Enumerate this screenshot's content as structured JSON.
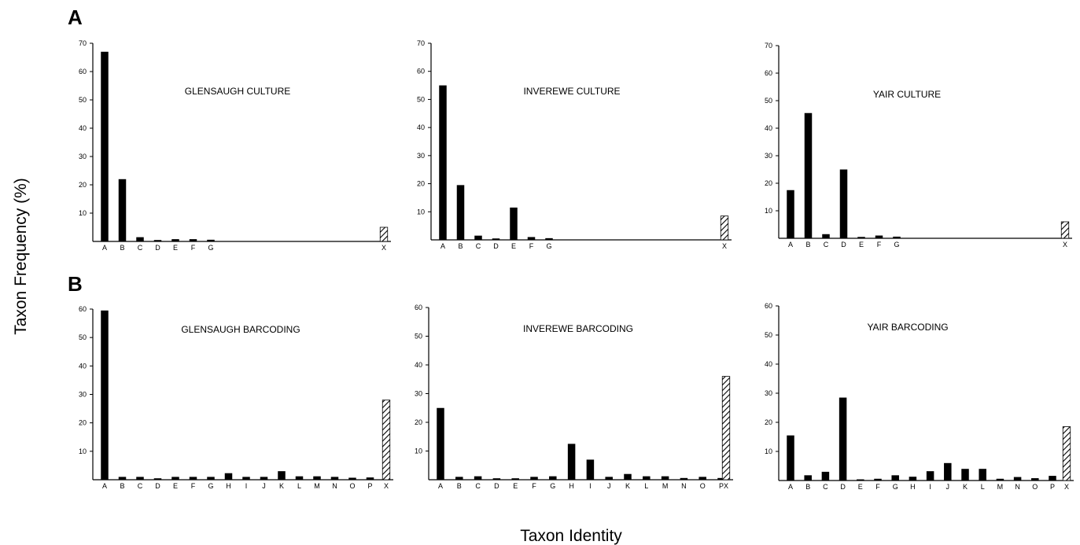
{
  "figure": {
    "panel_labels": [
      "A",
      "B"
    ],
    "y_axis_title": "Taxon Frequency (%)",
    "x_axis_title": "Taxon Identity",
    "colors": {
      "bar": "#000000",
      "axis": "#000000",
      "hatch": "#000000",
      "background": "#ffffff"
    }
  },
  "chart_data": [
    {
      "type": "bar",
      "title": "GLENSAUGH CULTURE",
      "row": "A",
      "categories": [
        "A",
        "B",
        "C",
        "D",
        "E",
        "F",
        "G",
        "X"
      ],
      "values": [
        67,
        22,
        1.5,
        0.5,
        0.8,
        0.8,
        0.6,
        5
      ],
      "hatched_categories": [
        "X"
      ],
      "ylim": [
        0,
        70
      ],
      "yticks": [
        10,
        20,
        30,
        40,
        50,
        60,
        70
      ]
    },
    {
      "type": "bar",
      "title": "INVEREWE CULTURE",
      "row": "A",
      "categories": [
        "A",
        "B",
        "C",
        "D",
        "E",
        "F",
        "G",
        "X"
      ],
      "values": [
        55,
        19.5,
        1.5,
        0.5,
        11.5,
        1,
        0.6,
        8.5
      ],
      "hatched_categories": [
        "X"
      ],
      "ylim": [
        0,
        70
      ],
      "yticks": [
        10,
        20,
        30,
        40,
        50,
        60,
        70
      ]
    },
    {
      "type": "bar",
      "title": "YAIR CULTURE",
      "row": "A",
      "categories": [
        "A",
        "B",
        "C",
        "D",
        "E",
        "F",
        "G",
        "X"
      ],
      "values": [
        17.5,
        45.5,
        1.5,
        25,
        0.5,
        1,
        0.6,
        6
      ],
      "hatched_categories": [
        "X"
      ],
      "ylim": [
        0,
        70
      ],
      "yticks": [
        10,
        20,
        30,
        40,
        50,
        60,
        70
      ]
    },
    {
      "type": "bar",
      "title": "GLENSAUGH BARCODING",
      "row": "B",
      "categories": [
        "A",
        "B",
        "C",
        "D",
        "E",
        "F",
        "G",
        "H",
        "I",
        "J",
        "K",
        "L",
        "M",
        "N",
        "O",
        "P",
        "X"
      ],
      "values": [
        59.5,
        1,
        1,
        0.5,
        1,
        1,
        1,
        2.3,
        1,
        1,
        3,
        1.2,
        1.2,
        1,
        0.7,
        0.8,
        28
      ],
      "hatched_categories": [
        "X"
      ],
      "ylim": [
        0,
        60
      ],
      "yticks": [
        10,
        20,
        30,
        40,
        50,
        60
      ]
    },
    {
      "type": "bar",
      "title": "INVEREWE BARCODING",
      "row": "B",
      "categories": [
        "A",
        "B",
        "C",
        "D",
        "E",
        "F",
        "G",
        "H",
        "I",
        "J",
        "K",
        "L",
        "M",
        "N",
        "O",
        "P",
        "X"
      ],
      "values": [
        25,
        1,
        1.2,
        0.5,
        0.5,
        1,
        1.2,
        12.5,
        7,
        1,
        2,
        1.2,
        1.2,
        0.6,
        1,
        0.6,
        36
      ],
      "hatched_categories": [
        "X"
      ],
      "ylim": [
        0,
        60
      ],
      "yticks": [
        10,
        20,
        30,
        40,
        50,
        60
      ]
    },
    {
      "type": "bar",
      "title": "YAIR BARCODING",
      "row": "B",
      "categories": [
        "A",
        "B",
        "C",
        "D",
        "E",
        "F",
        "G",
        "H",
        "I",
        "J",
        "K",
        "L",
        "M",
        "N",
        "O",
        "P",
        "X"
      ],
      "values": [
        15.5,
        1.8,
        3,
        28.5,
        0.4,
        0.6,
        1.8,
        1.3,
        3.2,
        6,
        4,
        4,
        0.6,
        1.2,
        0.8,
        1.6,
        18.5
      ],
      "hatched_categories": [
        "X"
      ],
      "ylim": [
        0,
        60
      ],
      "yticks": [
        10,
        20,
        30,
        40,
        50,
        60
      ]
    }
  ]
}
